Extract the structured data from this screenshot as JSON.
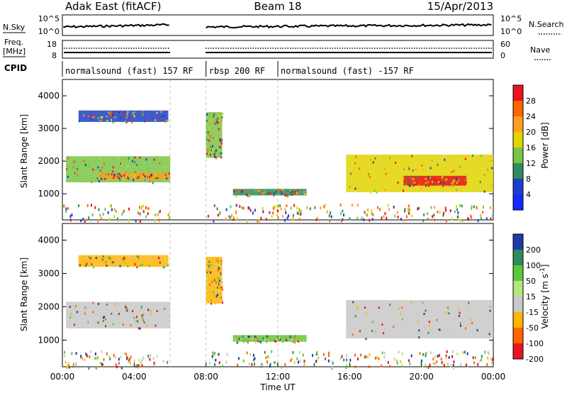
{
  "header": {
    "station": "Adak East (fitACF)",
    "beam": "Beam 18",
    "date": "15/Apr/2013"
  },
  "colors": {
    "frame": "#000000",
    "background": "#ffffff",
    "ground_scatter": "#c8c8c8",
    "sky_trace": "#000000",
    "mode_boundary": "#000000",
    "dashed_divider": "#c0c0c0"
  },
  "noise_panel": {
    "left_label": "N.Sky",
    "right_label": "N.Search",
    "ticks_left": [
      "10^5",
      "10^0"
    ],
    "ticks_right": [
      "10^5",
      "10^0"
    ]
  },
  "freq_panel": {
    "left_label_line1": "Freq.",
    "left_label_line2": "[MHz]",
    "left_ticks": [
      "18",
      "8"
    ],
    "right_label": "Nave",
    "right_ticks": [
      "60",
      "0"
    ]
  },
  "cpid": {
    "label": "CPID",
    "segments": [
      {
        "text": "normalsound (fast) 157 RF",
        "start_hour": 0.0,
        "end_hour": 6.0
      },
      {
        "text": "rbsp 200 RF",
        "start_hour": 8.0,
        "end_hour": 12.0
      },
      {
        "text": "normalsound (fast) -157 RF",
        "start_hour": 12.0,
        "end_hour": 24.0
      }
    ]
  },
  "chart_data": [
    {
      "type": "heatmap",
      "quantity": "Power",
      "ylabel": "Slant Range [km]",
      "ylim": [
        200,
        4500
      ],
      "yticks": [
        1000,
        2000,
        3000,
        4000
      ],
      "xlim": [
        0,
        24
      ],
      "data_gaps_hours": [
        [
          6.0,
          8.0
        ]
      ],
      "colorbar": {
        "label": "Power [dB]",
        "levels": [
          {
            "value": "28",
            "color": "#e8141e"
          },
          {
            "value": "24",
            "color": "#ff6400"
          },
          {
            "value": "20",
            "color": "#ff9d1f"
          },
          {
            "value": "16",
            "color": "#e1d400"
          },
          {
            "value": "12",
            "color": "#79c447"
          },
          {
            "value": "8",
            "color": "#2f8a5d"
          },
          {
            "value": "4",
            "color": "#1a3fc8"
          }
        ],
        "bottom_color": "#1428ff"
      },
      "regions": [
        {
          "t0": 0.9,
          "t1": 5.9,
          "r0": 3200,
          "r1": 3550,
          "level": "4"
        },
        {
          "t0": 0.2,
          "t1": 6.0,
          "r0": 1350,
          "r1": 2150,
          "level": "12"
        },
        {
          "t0": 2.0,
          "t1": 6.0,
          "r0": 1450,
          "r1": 1650,
          "level": "20"
        },
        {
          "t0": 8.0,
          "t1": 8.9,
          "r0": 2100,
          "r1": 3500,
          "level": "12"
        },
        {
          "t0": 9.5,
          "t1": 13.6,
          "r0": 950,
          "r1": 1150,
          "level": "8"
        },
        {
          "t0": 15.8,
          "t1": 24.0,
          "r0": 1050,
          "r1": 2200,
          "level": "16"
        },
        {
          "t0": 19.0,
          "t1": 22.5,
          "r0": 1250,
          "r1": 1550,
          "level": "28"
        }
      ]
    },
    {
      "type": "heatmap",
      "quantity": "Velocity",
      "ylabel": "Slant Range [km]",
      "ylim": [
        200,
        4500
      ],
      "yticks": [
        1000,
        2000,
        3000,
        4000
      ],
      "xlim": [
        0,
        24
      ],
      "xticks": [
        "00:00",
        "04:00",
        "08:00",
        "12:00",
        "16:00",
        "20:00",
        "00:00"
      ],
      "xlabel": "Time UT",
      "data_gaps_hours": [
        [
          6.0,
          8.0
        ]
      ],
      "colorbar": {
        "label": "Velocity [m s-1]",
        "label_text": "Velocity [m s",
        "label_exp": "-1",
        "label_close": "]",
        "levels": [
          {
            "value": "200",
            "color": "#1e3ca8"
          },
          {
            "value": "100",
            "color": "#2f8a5d"
          },
          {
            "value": "50",
            "color": "#5ac83c"
          },
          {
            "value": "15",
            "color": "#b4e682"
          },
          {
            "value": "-15",
            "color": "#c8c8c8"
          },
          {
            "value": "-50",
            "color": "#ffb400"
          },
          {
            "value": "-100",
            "color": "#ff6400"
          },
          {
            "value": "-200",
            "color": "#e8141e"
          }
        ]
      },
      "regions": [
        {
          "t0": 0.9,
          "t1": 5.9,
          "r0": 3200,
          "r1": 3550,
          "level": "-50"
        },
        {
          "t0": 0.2,
          "t1": 6.0,
          "r0": 1350,
          "r1": 2150,
          "level": "-15"
        },
        {
          "t0": 8.0,
          "t1": 8.9,
          "r0": 2100,
          "r1": 3500,
          "level": "-50"
        },
        {
          "t0": 9.5,
          "t1": 13.6,
          "r0": 950,
          "r1": 1150,
          "level": "50"
        },
        {
          "t0": 15.8,
          "t1": 24.0,
          "r0": 1050,
          "r1": 2200,
          "level": "-15"
        }
      ]
    }
  ]
}
